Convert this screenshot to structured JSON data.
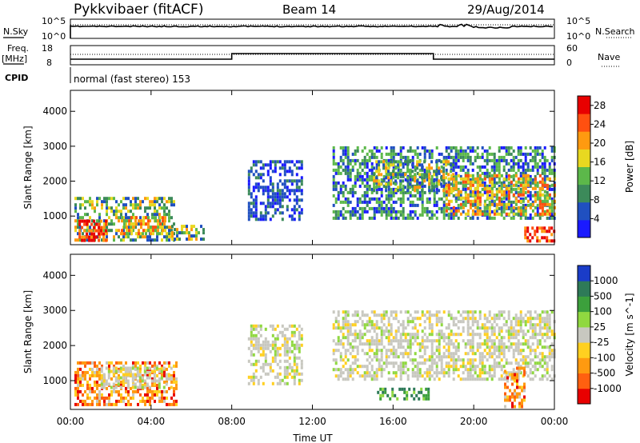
{
  "header": {
    "station": "Pykkvibaer (fitACF)",
    "beam": "Beam 14",
    "date": "29/Aug/2014"
  },
  "strips": {
    "nsky_label": "N.Sky",
    "nsky_top_tick": "10^5",
    "nsky_bottom_tick": "10^0",
    "nsearch_label": "N.Search",
    "nsearch_top_tick": "10^5",
    "nsearch_bottom_tick": "10^0",
    "freq_label": "Freq.",
    "freq_unit": "[MHz]",
    "freq_top_tick": "18",
    "freq_bottom_tick": "8",
    "nave_label": "Nave",
    "nave_top_tick": "60",
    "nave_bottom_tick": "0",
    "cpid_label": "CPID",
    "cpid_text": "normal (fast stereo) 153"
  },
  "chart_data": [
    {
      "type": "heatmap",
      "name": "power",
      "ylabel": "Slant Range [km]",
      "xlabel": "Time UT",
      "x_ticks": [
        "00:00",
        "04:00",
        "08:00",
        "12:00",
        "16:00",
        "20:00",
        "00:00"
      ],
      "x_range_hours": [
        0,
        24
      ],
      "y_ticks": [
        "1000",
        "2000",
        "3000",
        "4000"
      ],
      "y_range_km": [
        180,
        4600
      ],
      "colorbar": {
        "label": "Power [dB]",
        "ticks": [
          "4",
          "8",
          "12",
          "16",
          "20",
          "24",
          "28"
        ],
        "range": [
          0,
          30
        ],
        "colors": [
          "#1a1aff",
          "#2050c0",
          "#3c8a5a",
          "#5cb84a",
          "#e8d820",
          "#ff9a10",
          "#ff5010",
          "#e80000"
        ]
      },
      "regions": [
        {
          "t0": 0.2,
          "t1": 5.1,
          "r0": 300,
          "r1": 1550,
          "level": "mid"
        },
        {
          "t0": 0.4,
          "t1": 1.8,
          "r0": 300,
          "r1": 900,
          "level": "high"
        },
        {
          "t0": 2.5,
          "t1": 4.7,
          "r0": 500,
          "r1": 1000,
          "level": "mid-high"
        },
        {
          "t0": 5.0,
          "t1": 6.6,
          "r0": 300,
          "r1": 750,
          "level": "mid"
        },
        {
          "t0": 8.8,
          "t1": 11.5,
          "r0": 900,
          "r1": 2600,
          "level": "low"
        },
        {
          "t0": 13.0,
          "t1": 24.0,
          "r0": 900,
          "r1": 3000,
          "level": "low-mid"
        },
        {
          "t0": 15.0,
          "t1": 19.0,
          "r0": 1700,
          "r1": 2600,
          "level": "mid"
        },
        {
          "t0": 18.6,
          "t1": 24.0,
          "r0": 1100,
          "r1": 2200,
          "level": "mid-high"
        },
        {
          "t0": 22.5,
          "t1": 24.0,
          "r0": 250,
          "r1": 700,
          "level": "high"
        }
      ]
    },
    {
      "type": "heatmap",
      "name": "velocity",
      "ylabel": "Slant Range [km]",
      "xlabel": "Time UT",
      "x_ticks": [
        "00:00",
        "04:00",
        "08:00",
        "12:00",
        "16:00",
        "20:00",
        "00:00"
      ],
      "x_range_hours": [
        0,
        24
      ],
      "y_ticks": [
        "1000",
        "2000",
        "3000",
        "4000"
      ],
      "y_range_km": [
        180,
        4600
      ],
      "colorbar": {
        "label": "Velocity [m s^-1]",
        "ticks": [
          "1000",
          "500",
          "100",
          "25",
          "-25",
          "-100",
          "-500",
          "-1000"
        ],
        "colors": [
          "#1a3cc8",
          "#2e7a58",
          "#3ca03c",
          "#90d840",
          "#c8c8c0",
          "#ffd020",
          "#ff9a10",
          "#ff6010",
          "#e80000"
        ]
      },
      "regions": [
        {
          "t0": 0.2,
          "t1": 5.2,
          "r0": 300,
          "r1": 1550,
          "level": "negative"
        },
        {
          "t0": 1.5,
          "t1": 5.0,
          "r0": 800,
          "r1": 1400,
          "level": "near-zero"
        },
        {
          "t0": 8.8,
          "t1": 11.5,
          "r0": 900,
          "r1": 2600,
          "level": "near-zero"
        },
        {
          "t0": 13.0,
          "t1": 24.0,
          "r0": 1000,
          "r1": 3000,
          "level": "near-zero"
        },
        {
          "t0": 15.2,
          "t1": 17.8,
          "r0": 500,
          "r1": 800,
          "level": "positive"
        },
        {
          "t0": 21.5,
          "t1": 22.5,
          "r0": 300,
          "r1": 1400,
          "level": "negative"
        }
      ]
    }
  ]
}
